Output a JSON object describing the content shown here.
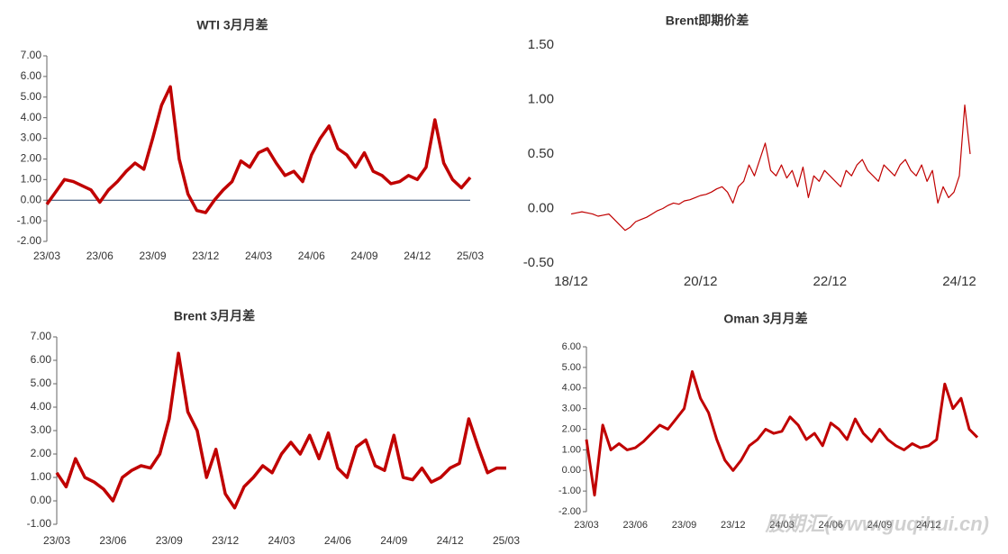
{
  "chart_data": [
    {
      "type": "line",
      "title": "WTI 3月月差",
      "categories": [
        "23/03",
        null,
        null,
        null,
        null,
        null,
        "23/06",
        null,
        null,
        null,
        null,
        null,
        "23/09",
        null,
        null,
        null,
        null,
        null,
        "23/12",
        null,
        null,
        null,
        null,
        null,
        "24/03",
        null,
        null,
        null,
        null,
        null,
        "24/06",
        null,
        null,
        null,
        null,
        null,
        "24/09",
        null,
        null,
        null,
        null,
        null,
        "24/12",
        null,
        null,
        null,
        null,
        null,
        "25/03"
      ],
      "series": [
        {
          "name": "WTI 3月月差",
          "color": "#c00000",
          "values": [
            -0.2,
            0.4,
            1.0,
            0.9,
            0.7,
            0.5,
            -0.1,
            0.5,
            0.9,
            1.4,
            1.8,
            1.5,
            3.0,
            4.6,
            5.5,
            2.0,
            0.3,
            -0.5,
            -0.6,
            0.0,
            0.5,
            0.9,
            1.9,
            1.6,
            2.3,
            2.5,
            1.8,
            1.2,
            1.4,
            0.9,
            2.2,
            3.0,
            3.6,
            2.5,
            2.2,
            1.6,
            2.3,
            1.4,
            1.2,
            0.8,
            0.9,
            1.2,
            1.0,
            1.6,
            3.9,
            1.8,
            1.0,
            0.6,
            1.1
          ]
        }
      ],
      "ylim": [
        -2,
        7
      ],
      "yticks": [
        {
          "value": -2,
          "label": "-2.00"
        },
        {
          "value": -1,
          "label": "-1.00"
        },
        {
          "value": 0,
          "label": "0.00"
        },
        {
          "value": 1,
          "label": "1.00"
        },
        {
          "value": 2,
          "label": "2.00"
        },
        {
          "value": 3,
          "label": "3.00"
        },
        {
          "value": 4,
          "label": "4.00"
        },
        {
          "value": 5,
          "label": "5.00"
        },
        {
          "value": 6,
          "label": "6.00"
        },
        {
          "value": 7,
          "label": "7.00"
        }
      ],
      "zero_line": true,
      "y_axis_line": true
    },
    {
      "type": "line",
      "title": "Brent即期价差",
      "categories": [
        "18/12",
        null,
        null,
        null,
        null,
        null,
        null,
        null,
        null,
        null,
        null,
        null,
        null,
        null,
        null,
        null,
        null,
        null,
        null,
        null,
        null,
        null,
        null,
        null,
        "20/12",
        null,
        null,
        null,
        null,
        null,
        null,
        null,
        null,
        null,
        null,
        null,
        null,
        null,
        null,
        null,
        null,
        null,
        null,
        null,
        null,
        null,
        null,
        null,
        "22/12",
        null,
        null,
        null,
        null,
        null,
        null,
        null,
        null,
        null,
        null,
        null,
        null,
        null,
        null,
        null,
        null,
        null,
        null,
        null,
        null,
        null,
        null,
        null,
        "24/12",
        null,
        null
      ],
      "series": [
        {
          "name": "Brent即期价差",
          "color": "#c00000",
          "values": [
            -0.05,
            -0.04,
            -0.03,
            -0.04,
            -0.05,
            -0.07,
            -0.06,
            -0.05,
            -0.1,
            -0.15,
            -0.2,
            -0.17,
            -0.12,
            -0.1,
            -0.08,
            -0.05,
            -0.02,
            0.0,
            0.03,
            0.05,
            0.04,
            0.07,
            0.08,
            0.1,
            0.12,
            0.13,
            0.15,
            0.18,
            0.2,
            0.15,
            0.05,
            0.2,
            0.25,
            0.4,
            0.3,
            0.45,
            0.6,
            0.35,
            0.3,
            0.4,
            0.28,
            0.35,
            0.2,
            0.38,
            0.1,
            0.3,
            0.25,
            0.35,
            0.3,
            0.25,
            0.2,
            0.35,
            0.3,
            0.4,
            0.45,
            0.35,
            0.3,
            0.25,
            0.4,
            0.35,
            0.3,
            0.4,
            0.45,
            0.35,
            0.3,
            0.4,
            0.25,
            0.35,
            0.05,
            0.2,
            0.1,
            0.15,
            0.3,
            0.95,
            0.5
          ]
        }
      ],
      "ylim": [
        -0.5,
        1.5
      ],
      "yticks": [
        {
          "value": -0.5,
          "label": "-0.50"
        },
        {
          "value": 0,
          "label": "0.00"
        },
        {
          "value": 0.5,
          "label": "0.50"
        },
        {
          "value": 1,
          "label": "1.00"
        },
        {
          "value": 1.5,
          "label": "1.50"
        }
      ],
      "zero_line": false,
      "y_axis_line": false
    },
    {
      "type": "line",
      "title": "Brent 3月月差",
      "categories": [
        "23/03",
        null,
        null,
        null,
        null,
        null,
        "23/06",
        null,
        null,
        null,
        null,
        null,
        "23/09",
        null,
        null,
        null,
        null,
        null,
        "23/12",
        null,
        null,
        null,
        null,
        null,
        "24/03",
        null,
        null,
        null,
        null,
        null,
        "24/06",
        null,
        null,
        null,
        null,
        null,
        "24/09",
        null,
        null,
        null,
        null,
        null,
        "24/12",
        null,
        null,
        null,
        null,
        null,
        "25/03"
      ],
      "series": [
        {
          "name": "Brent 3月月差",
          "color": "#c00000",
          "values": [
            1.2,
            0.6,
            1.8,
            1.0,
            0.8,
            0.5,
            0.0,
            1.0,
            1.3,
            1.5,
            1.4,
            2.0,
            3.5,
            6.3,
            3.8,
            3.0,
            1.0,
            2.2,
            0.3,
            -0.3,
            0.6,
            1.0,
            1.5,
            1.2,
            2.0,
            2.5,
            2.0,
            2.8,
            1.8,
            2.9,
            1.4,
            1.0,
            2.3,
            2.6,
            1.5,
            1.3,
            2.8,
            1.0,
            0.9,
            1.4,
            0.8,
            1.0,
            1.4,
            1.6,
            3.5,
            2.3,
            1.2,
            1.4,
            1.4
          ]
        }
      ],
      "ylim": [
        -1,
        7
      ],
      "yticks": [
        {
          "value": -1,
          "label": "-1.00"
        },
        {
          "value": 0,
          "label": "0.00"
        },
        {
          "value": 1,
          "label": "1.00"
        },
        {
          "value": 2,
          "label": "2.00"
        },
        {
          "value": 3,
          "label": "3.00"
        },
        {
          "value": 4,
          "label": "4.00"
        },
        {
          "value": 5,
          "label": "5.00"
        },
        {
          "value": 6,
          "label": "6.00"
        },
        {
          "value": 7,
          "label": "7.00"
        }
      ],
      "zero_line": false,
      "y_axis_line": true
    },
    {
      "type": "line",
      "title": "Oman 3月月差",
      "categories": [
        "23/03",
        null,
        null,
        null,
        null,
        null,
        "23/06",
        null,
        null,
        null,
        null,
        null,
        "23/09",
        null,
        null,
        null,
        null,
        null,
        "23/12",
        null,
        null,
        null,
        null,
        null,
        "24/03",
        null,
        null,
        null,
        null,
        null,
        "24/06",
        null,
        null,
        null,
        null,
        null,
        "24/09",
        null,
        null,
        null,
        null,
        null,
        "24/12",
        null,
        null,
        null,
        null,
        null,
        null
      ],
      "series": [
        {
          "name": "Oman 3月月差",
          "color": "#c00000",
          "values": [
            1.5,
            -1.2,
            2.2,
            1.0,
            1.3,
            1.0,
            1.1,
            1.4,
            1.8,
            2.2,
            2.0,
            2.5,
            3.0,
            4.8,
            3.5,
            2.8,
            1.5,
            0.5,
            0.0,
            0.5,
            1.2,
            1.5,
            2.0,
            1.8,
            1.9,
            2.6,
            2.2,
            1.5,
            1.8,
            1.2,
            2.3,
            2.0,
            1.5,
            2.5,
            1.8,
            1.4,
            2.0,
            1.5,
            1.2,
            1.0,
            1.3,
            1.1,
            1.2,
            1.5,
            4.2,
            3.0,
            3.5,
            2.0,
            1.6
          ]
        }
      ],
      "ylim": [
        -2,
        6
      ],
      "yticks": [
        {
          "value": -2,
          "label": "-2.00"
        },
        {
          "value": -1,
          "label": "-1.00"
        },
        {
          "value": 0,
          "label": "0.00"
        },
        {
          "value": 1,
          "label": "1.00"
        },
        {
          "value": 2,
          "label": "2.00"
        },
        {
          "value": 3,
          "label": "3.00"
        },
        {
          "value": 4,
          "label": "4.00"
        },
        {
          "value": 5,
          "label": "5.00"
        },
        {
          "value": 6,
          "label": "6.00"
        }
      ],
      "zero_line": false,
      "y_axis_line": true
    }
  ],
  "watermark": "股期汇(www.guqihui.cn)"
}
